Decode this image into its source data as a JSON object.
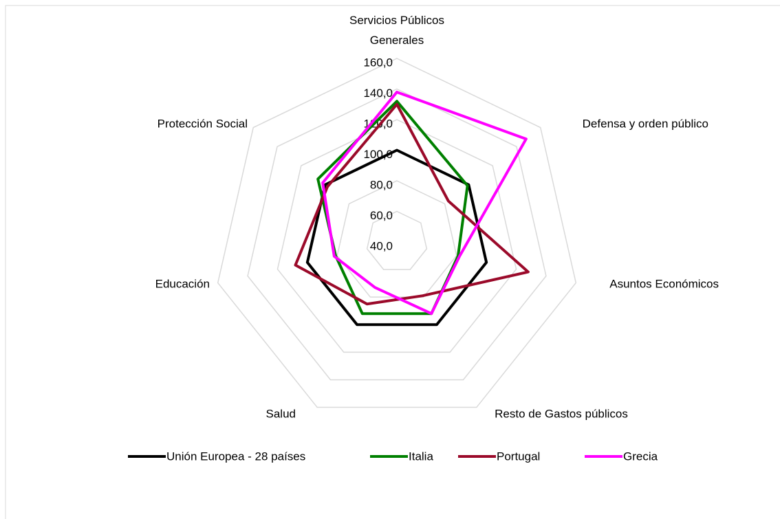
{
  "chart_data": {
    "type": "radar",
    "categories": [
      "Servicios Públicos Generales",
      "Defensa y orden público",
      "Asuntos Económicos",
      "Resto de Gastos públicos",
      "Salud",
      "Educación",
      "Protección Social"
    ],
    "series": [
      {
        "name": "Unión Europea - 28 países",
        "color": "#000000",
        "values": [
          100,
          100,
          100,
          100,
          100,
          100,
          100
        ]
      },
      {
        "name": "Italia",
        "color": "#008000",
        "values": [
          132,
          99,
          81,
          92,
          92,
          81,
          106
        ]
      },
      {
        "name": "Portugal",
        "color": "#9b0a2a",
        "values": [
          130,
          83,
          128,
          79,
          85,
          108,
          98
        ]
      },
      {
        "name": "Grecia",
        "color": "#ff00ff",
        "values": [
          138,
          148,
          82,
          92,
          73,
          82,
          102
        ]
      }
    ],
    "ylim": [
      40,
      160
    ],
    "yticks": [
      {
        "value": 40,
        "label": "40,0"
      },
      {
        "value": 60,
        "label": "60,0"
      },
      {
        "value": 80,
        "label": "80,0"
      },
      {
        "value": 100,
        "label": "100,0"
      },
      {
        "value": 120,
        "label": "120,0"
      },
      {
        "value": 140,
        "label": "140,0"
      },
      {
        "value": 160,
        "label": "160,0"
      }
    ],
    "grid": true,
    "legend": "bottom"
  }
}
